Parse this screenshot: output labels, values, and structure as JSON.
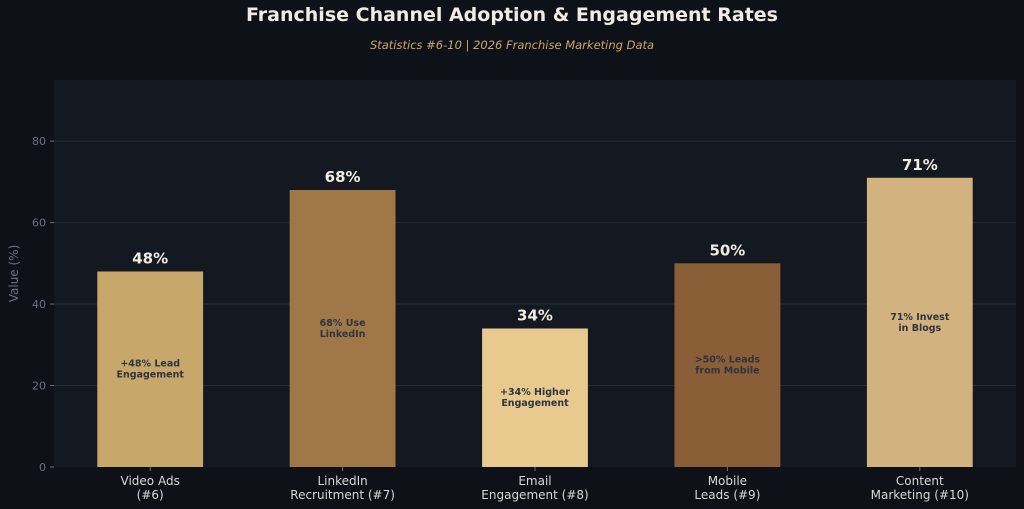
{
  "title": "Franchise Channel Adoption & Engagement Rates",
  "subtitle": "Statistics #6-10   |   2026 Franchise Marketing Data",
  "chart_data": {
    "type": "bar",
    "title": "Franchise Channel Adoption & Engagement Rates",
    "subtitle": "Statistics #6-10   |   2026 Franchise Marketing Data",
    "xlabel": "",
    "ylabel": "Value (%)",
    "ylim": [
      0,
      95
    ],
    "yticks": [
      0,
      20,
      40,
      60,
      80
    ],
    "grid": true,
    "categories": [
      [
        "Video Ads",
        "(#6)"
      ],
      [
        "LinkedIn",
        "Recruitment (#7)"
      ],
      [
        "Email",
        "Engagement (#8)"
      ],
      [
        "Mobile",
        "Leads (#9)"
      ],
      [
        "Content",
        "Marketing (#10)"
      ]
    ],
    "values": [
      48,
      68,
      34,
      50,
      71
    ],
    "value_labels": [
      "48%",
      "68%",
      "34%",
      "50%",
      "71%"
    ],
    "inner_labels": [
      [
        "+48% Lead",
        "Engagement"
      ],
      [
        "68% Use",
        "LinkedIn"
      ],
      [
        "+34% Higher",
        "Engagement"
      ],
      [
        ">50% Leads",
        "from Mobile"
      ],
      [
        "71% Invest",
        "in Blogs"
      ]
    ],
    "colors": [
      "#c8a76a",
      "#a07847",
      "#e8c98e",
      "#8a5e37",
      "#d2b27f"
    ]
  },
  "style": {
    "background": "#0e1117",
    "plot_background": "#141821",
    "grid_color": "#262b36",
    "tick_color": "#6b7080",
    "category_label_color": "#d8d8d8",
    "value_label_color": "#f0ece4",
    "inner_label_color": "#2e3440"
  }
}
